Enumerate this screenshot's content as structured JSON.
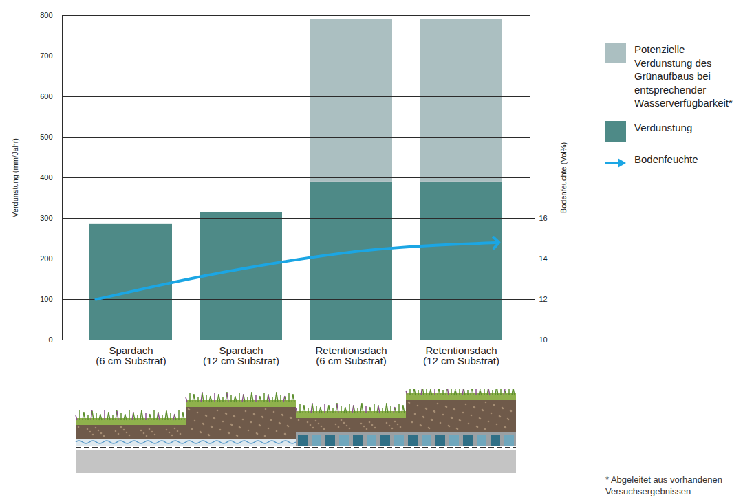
{
  "chart_data": {
    "type": "bar",
    "stacked": true,
    "categories": [
      "Spardach (6 cm Substrat)",
      "Spardach (12 cm Substrat)",
      "Retentionsdach (6 cm Substrat)",
      "Retentionsdach (12 cm Substrat)"
    ],
    "series": [
      {
        "name": "Verdunstung",
        "color": "#4e8a87",
        "values": [
          285,
          315,
          390,
          390
        ]
      },
      {
        "name": "Potenzielle Verdunstung des Grünaufbaus bei entsprechender Wasserverfügbarkeit*",
        "color": "#abbfc1",
        "values": [
          null,
          null,
          400,
          400
        ]
      },
      {
        "name": "Bodenfeuchte",
        "type": "line",
        "axis": "y2",
        "color": "#1ba6e4",
        "marker": "arrow",
        "values": [
          12,
          13.4,
          14.4,
          14.8
        ]
      }
    ],
    "ylabel": "Verdunstung (mm/Jahr)",
    "y2label": "Bodenfeuchte (Vol%)",
    "ylim": [
      0,
      800
    ],
    "yticks": [
      0,
      100,
      200,
      300,
      400,
      500,
      600,
      700,
      800
    ],
    "y2lim": [
      10,
      26
    ],
    "y2ticks": [
      10,
      12,
      14,
      16
    ],
    "grid": true,
    "legend": "right",
    "note": "* Abgeleitet aus vorhandenen Versuchsergebnissen"
  }
}
